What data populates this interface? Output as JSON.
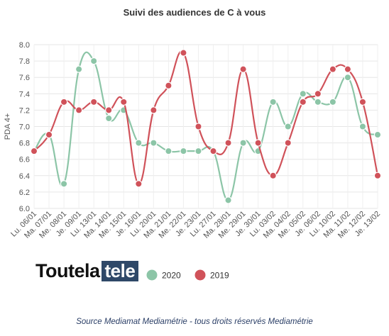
{
  "chart_data": {
    "type": "line",
    "title": "Suivi des audiences de C à vous",
    "ylabel": "PDA 4+",
    "xlabel": "",
    "ylim": [
      6.0,
      8.0
    ],
    "yticks": [
      "6.0",
      "6.2",
      "6.4",
      "6.6",
      "6.8",
      "7.0",
      "7.2",
      "7.4",
      "7.6",
      "7.8",
      "8.0"
    ],
    "grid": true,
    "legend_position": "bottom",
    "categories": [
      "Lu. 06/01",
      "Ma. 07/01",
      "Me. 08/01",
      "Je. 09/01",
      "Lu. 13/01",
      "Ma. 14/01",
      "Me. 15/01",
      "Je. 16/01",
      "Lu. 20/01",
      "Ma. 21/01",
      "Me. 22/01",
      "Je. 23/01",
      "Lu. 27/01",
      "Ma. 28/01",
      "Me. 29/01",
      "Je. 30/01",
      "Lu. 03/02",
      "Ma. 04/02",
      "Me. 05/02",
      "Je. 06/02",
      "Lu. 10/02",
      "Ma. 11/02",
      "Me. 12/02",
      "Je. 13/02"
    ],
    "series": [
      {
        "name": "2020",
        "color": "#8cc5a7",
        "values": [
          6.7,
          6.9,
          6.3,
          7.7,
          7.8,
          7.1,
          7.2,
          6.8,
          6.8,
          6.7,
          6.7,
          6.7,
          6.7,
          6.1,
          6.8,
          6.7,
          7.3,
          7.0,
          7.4,
          7.3,
          7.3,
          7.6,
          7.0,
          6.9
        ]
      },
      {
        "name": "2019",
        "color": "#d0525a",
        "values": [
          6.7,
          6.9,
          7.3,
          7.2,
          7.3,
          7.2,
          7.3,
          6.3,
          7.2,
          7.5,
          7.9,
          7.0,
          6.7,
          6.8,
          7.7,
          6.8,
          6.4,
          6.8,
          7.3,
          7.4,
          7.7,
          7.7,
          7.3,
          6.4
        ]
      }
    ]
  },
  "logo": {
    "main": "Toutela",
    "box": "tele"
  },
  "source": "Source Mediamat Mediamétrie - tous droits réservés Mediamétrie"
}
